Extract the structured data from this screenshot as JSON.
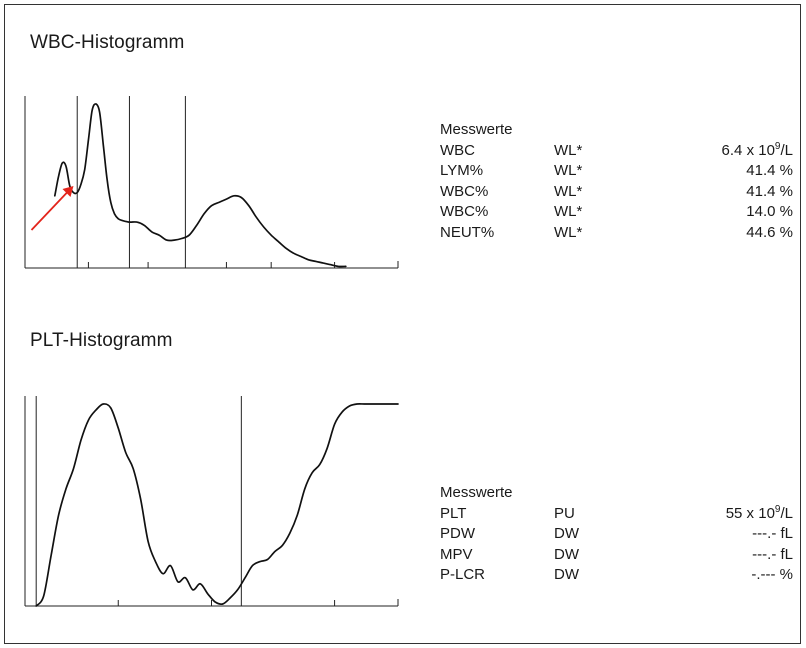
{
  "colors": {
    "line": "#111111",
    "axis": "#222222",
    "arrow": "#e3241b"
  },
  "wbc": {
    "title": "WBC-Histogramm",
    "measurements_label": "Messwerte",
    "rows": [
      {
        "name": "WBC",
        "mode": "WL*",
        "value": "6.4 x 10",
        "sup": "9",
        "unit": "/L"
      },
      {
        "name": "LYM%",
        "mode": "WL*",
        "value": "41.4 %",
        "sup": "",
        "unit": ""
      },
      {
        "name": "WBC%",
        "mode": "WL*",
        "value": "41.4 %",
        "sup": "",
        "unit": ""
      },
      {
        "name": "WBC%",
        "mode": "WL*",
        "value": "14.0 %",
        "sup": "",
        "unit": ""
      },
      {
        "name": "NEUT%",
        "mode": "WL*",
        "value": "44.6 %",
        "sup": "",
        "unit": ""
      }
    ]
  },
  "plt": {
    "title": "PLT-Histogramm",
    "measurements_label": "Messwerte",
    "rows": [
      {
        "name": "PLT",
        "mode": "PU",
        "value": "55 x 10",
        "sup": "9",
        "unit": "/L"
      },
      {
        "name": "PDW",
        "mode": "DW",
        "value": "---.- fL",
        "sup": "",
        "unit": ""
      },
      {
        "name": "MPV",
        "mode": "DW",
        "value": "---.- fL",
        "sup": "",
        "unit": ""
      },
      {
        "name": "P-LCR",
        "mode": "DW",
        "value": "-.--- %",
        "sup": "",
        "unit": ""
      }
    ]
  },
  "chart_data": [
    {
      "type": "line",
      "title": "WBC-Histogramm",
      "xlim": [
        0,
        100
      ],
      "ylim": [
        0,
        100
      ],
      "x": [
        8,
        9,
        10,
        11,
        12,
        13,
        14,
        15,
        16,
        17,
        18,
        19,
        20,
        21,
        22,
        23,
        24,
        25,
        26,
        28,
        30,
        32,
        34,
        36,
        38,
        40,
        42,
        44,
        46,
        48,
        50,
        52,
        54,
        56,
        58,
        60,
        62,
        64,
        66,
        68,
        70,
        72,
        74,
        76,
        78,
        80,
        82,
        84,
        86
      ],
      "values": [
        44,
        56,
        64,
        62,
        50,
        46,
        46,
        51,
        60,
        78,
        96,
        100,
        95,
        75,
        54,
        40,
        33,
        30,
        29,
        28,
        28,
        26,
        22,
        20,
        17,
        17,
        18,
        20,
        26,
        33,
        38,
        40,
        42,
        44,
        43,
        38,
        31,
        25,
        20,
        16,
        12,
        9,
        7,
        5,
        4,
        3,
        2,
        1,
        1
      ],
      "thresholds_x": [
        14,
        28,
        43
      ],
      "annotations": [
        {
          "type": "arrow",
          "color": "#e3241b",
          "points_to_x": 13
        }
      ],
      "grid": false,
      "legend": "none"
    },
    {
      "type": "line",
      "title": "PLT-Histogramm",
      "xlim": [
        0,
        100
      ],
      "ylim": [
        0,
        100
      ],
      "x": [
        3,
        5,
        7,
        9,
        11,
        13,
        15,
        17,
        19,
        21,
        23,
        25,
        27,
        29,
        31,
        33,
        35,
        37,
        39,
        41,
        43,
        45,
        47,
        49,
        51,
        53,
        55,
        57,
        59,
        61,
        63,
        65,
        67,
        69,
        71,
        73,
        75,
        77,
        79,
        81,
        83,
        85,
        87,
        89,
        91,
        93,
        95,
        100
      ],
      "values": [
        0,
        5,
        25,
        45,
        58,
        68,
        82,
        92,
        97,
        100,
        98,
        88,
        76,
        68,
        53,
        32,
        22,
        16,
        20,
        12,
        14,
        8,
        11,
        6,
        2,
        1,
        4,
        8,
        14,
        20,
        22,
        23,
        27,
        30,
        36,
        45,
        58,
        66,
        70,
        78,
        90,
        96,
        99,
        100,
        100,
        100,
        100,
        100
      ],
      "thresholds_x": [
        3,
        58
      ],
      "grid": false,
      "legend": "none"
    }
  ]
}
